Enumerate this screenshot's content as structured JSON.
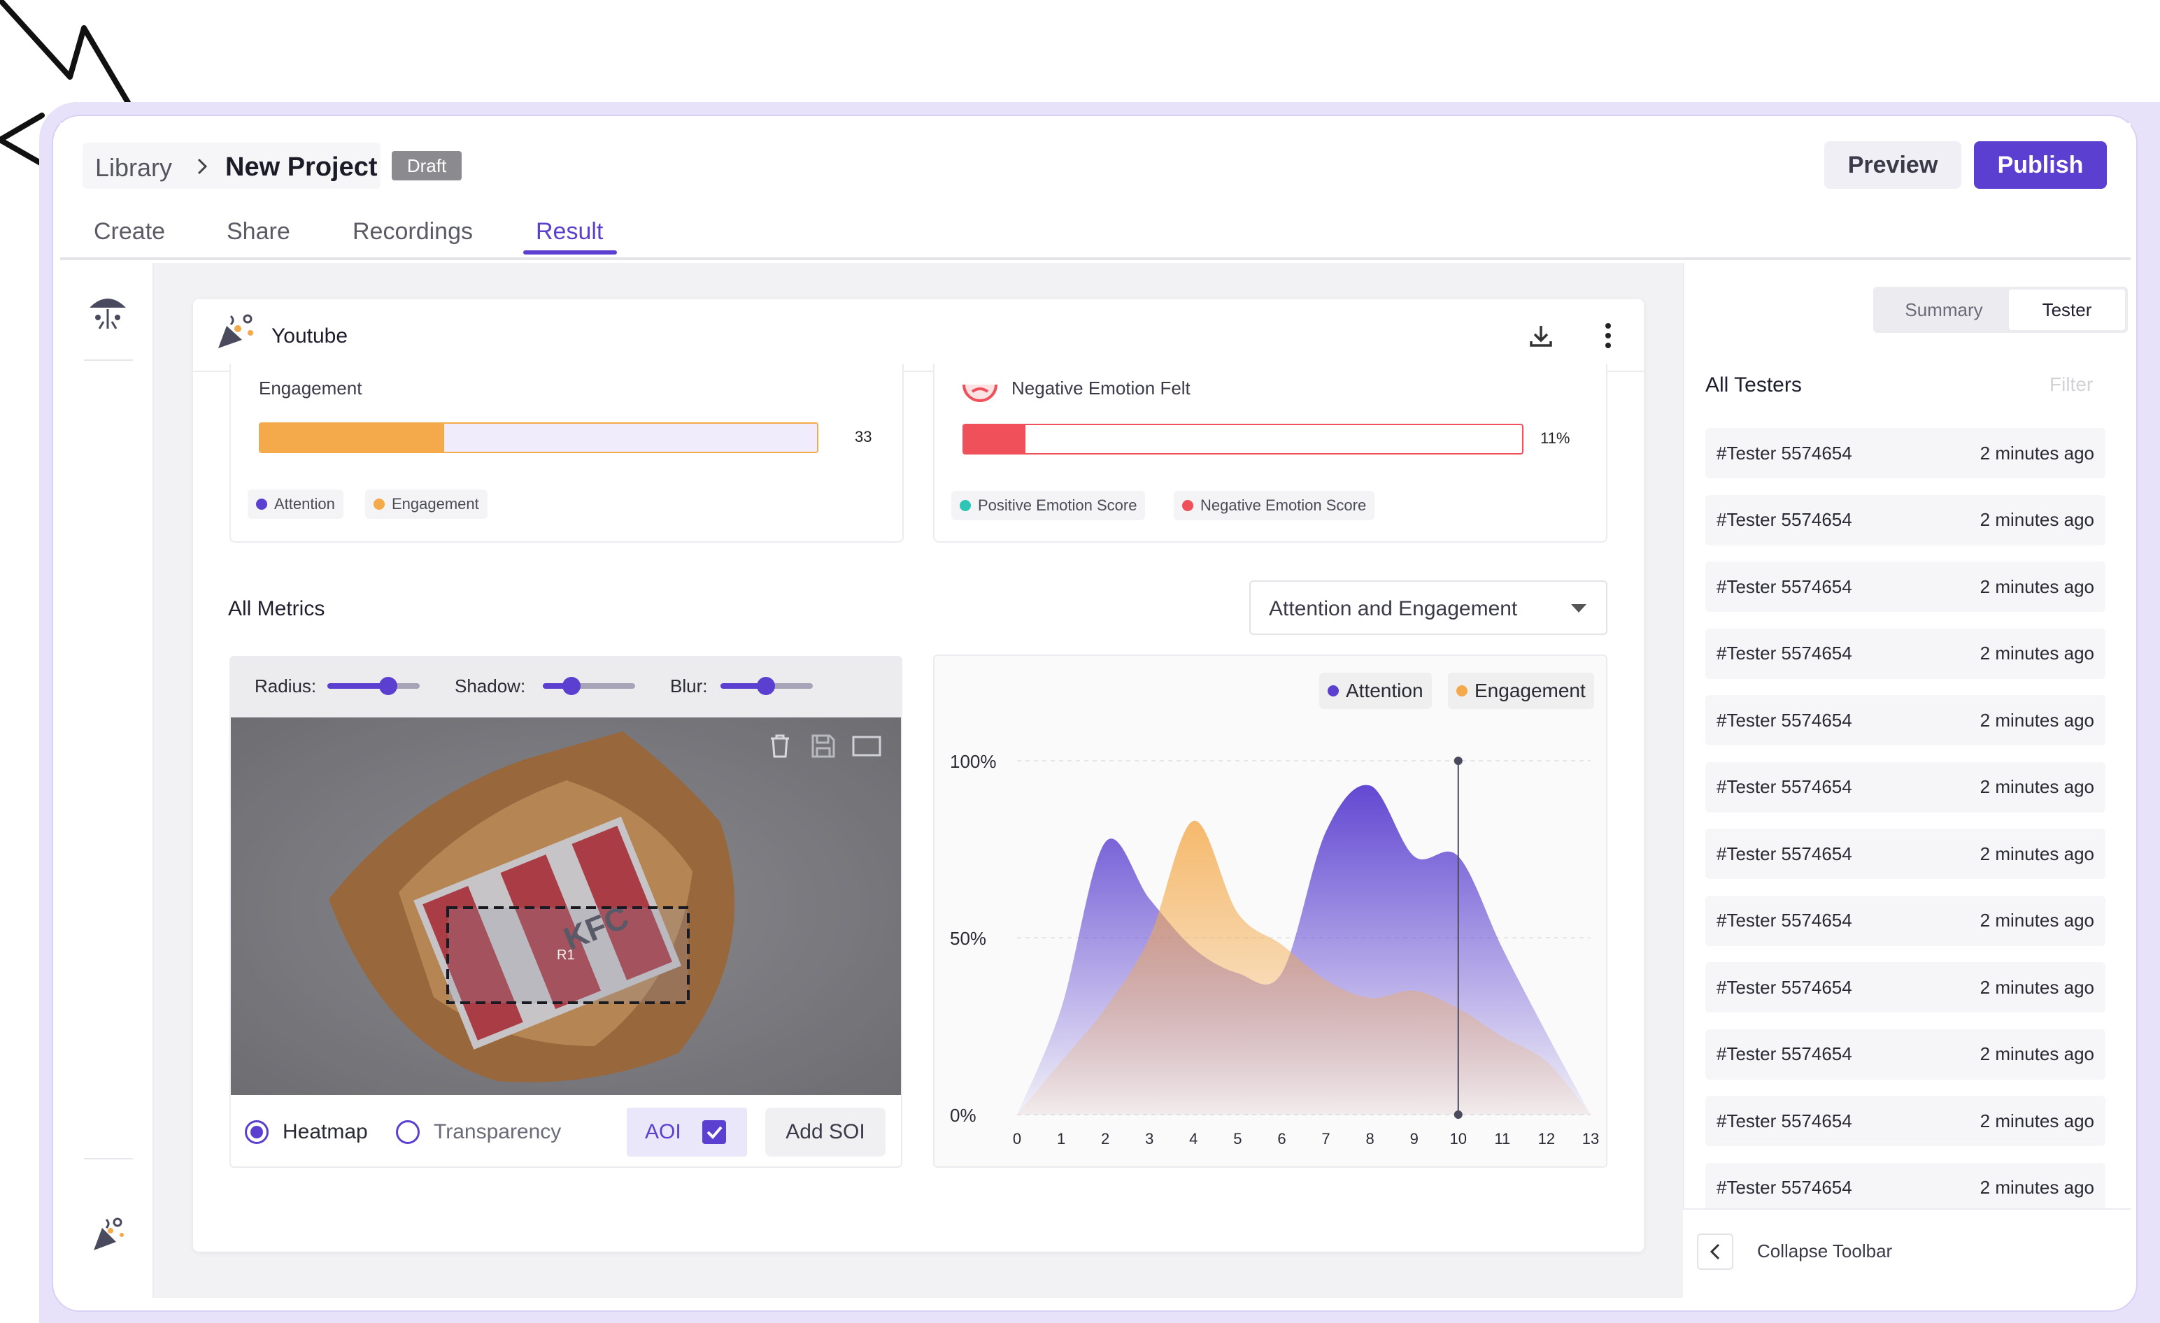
{
  "header": {
    "breadcrumb_root": "Library",
    "project_name": "New Project",
    "status_badge": "Draft",
    "preview_label": "Preview",
    "publish_label": "Publish"
  },
  "tabs": [
    {
      "label": "Create"
    },
    {
      "label": "Share"
    },
    {
      "label": "Recordings"
    },
    {
      "label": "Result",
      "active": true
    }
  ],
  "card": {
    "title": "Youtube",
    "engagement": {
      "label": "Engagement",
      "value_text": "33",
      "value": 33,
      "color": "#f4a94a"
    },
    "negative": {
      "label": "Negative Emotion Felt",
      "value_text": "11%",
      "value": 11,
      "color": "#f0505a"
    },
    "legend_left": [
      "Attention",
      "Engagement"
    ],
    "legend_right": [
      "Positive Emotion Score",
      "Negative Emotion Score"
    ],
    "all_metrics_label": "All Metrics",
    "metric_select": "Attention and Engagement"
  },
  "heatmap": {
    "radius_label": "Radius:",
    "radius_value": 0.65,
    "shadow_label": "Shadow:",
    "shadow_value": 0.3,
    "blur_label": "Blur:",
    "blur_value": 0.5,
    "aoi_region_label": "R1",
    "heatmap_label": "Heatmap",
    "transparency_label": "Transparency",
    "aoi_label": "AOI",
    "add_soi_label": "Add SOI"
  },
  "chart_data": {
    "type": "area",
    "x": [
      0,
      1,
      2,
      3,
      4,
      5,
      6,
      7,
      8,
      9,
      10,
      11,
      12,
      13
    ],
    "y_ticks": [
      "0%",
      "50%",
      "100%"
    ],
    "ylim": [
      0,
      100
    ],
    "legend_position": "top-right",
    "grid": true,
    "series": [
      {
        "name": "Attention",
        "color": "#5a3fd0",
        "values": [
          0,
          30,
          77,
          61,
          47,
          40,
          40,
          80,
          93,
          73,
          73,
          47,
          23,
          0
        ]
      },
      {
        "name": "Engagement",
        "color": "#f4a94a",
        "values": [
          0,
          15,
          30,
          50,
          83,
          57,
          48,
          38,
          33,
          35,
          30,
          22,
          15,
          0
        ]
      }
    ],
    "marker_x": 10
  },
  "testers": {
    "summary_tab": "Summary",
    "tester_tab": "Tester",
    "title": "All Testers",
    "filter_label": "Filter",
    "rows": [
      {
        "name": "#Tester 5574654",
        "time": "2 minutes ago"
      },
      {
        "name": "#Tester 5574654",
        "time": "2 minutes ago"
      },
      {
        "name": "#Tester 5574654",
        "time": "2 minutes ago"
      },
      {
        "name": "#Tester 5574654",
        "time": "2 minutes ago"
      },
      {
        "name": "#Tester 5574654",
        "time": "2 minutes ago"
      },
      {
        "name": "#Tester 5574654",
        "time": "2 minutes ago"
      },
      {
        "name": "#Tester 5574654",
        "time": "2 minutes ago"
      },
      {
        "name": "#Tester 5574654",
        "time": "2 minutes ago"
      },
      {
        "name": "#Tester 5574654",
        "time": "2 minutes ago"
      },
      {
        "name": "#Tester 5574654",
        "time": "2 minutes ago"
      },
      {
        "name": "#Tester 5574654",
        "time": "2 minutes ago"
      },
      {
        "name": "#Tester 5574654",
        "time": "2 minutes ago"
      }
    ],
    "collapse_label": "Collapse Toolbar"
  },
  "colors": {
    "accent": "#5a3fd0",
    "orange": "#f4a94a",
    "red": "#f0505a",
    "teal": "#2ec4b6"
  }
}
